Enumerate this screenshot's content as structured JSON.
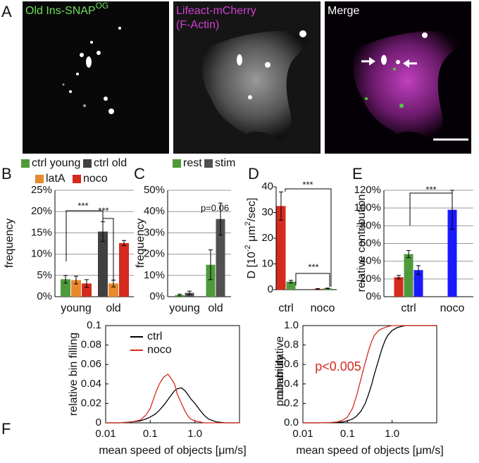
{
  "panel_labels": [
    "A",
    "B",
    "C",
    "D",
    "E",
    "F"
  ],
  "panel_a": {
    "labels": [
      {
        "text": "Old Ins-SNAP",
        "sup": "OG"
      },
      {
        "lines": [
          "Lifeact-mCherry",
          "(F-Actin)"
        ]
      },
      {
        "text": "Merge"
      }
    ]
  },
  "chart_data": [
    {
      "type": "bar",
      "categories": [
        "young",
        "old"
      ],
      "ylabel": "frequency",
      "ylim": [
        0,
        25
      ],
      "yticks": [
        {
          "value": 0,
          "label": "0%"
        },
        {
          "value": 5,
          "label": "5%"
        },
        {
          "value": 10,
          "label": "10%"
        },
        {
          "value": 15,
          "label": "15%"
        },
        {
          "value": 20,
          "label": "20%"
        },
        {
          "value": 25,
          "label": "25%"
        }
      ],
      "grid": true,
      "series": [
        {
          "name": "ctrl young",
          "color": "#4e9a3a",
          "values": [
            4.1,
            null
          ],
          "errors": [
            0.9,
            null
          ]
        },
        {
          "name": "ctrl old",
          "color": "#404040",
          "values": [
            null,
            15.3
          ],
          "errors": [
            null,
            2.3
          ]
        },
        {
          "name": "latA",
          "color": "#e8892e",
          "values": [
            3.9,
            3.1
          ],
          "errors": [
            0.9,
            0.8
          ]
        },
        {
          "name": "noco",
          "color": "#d52a1e",
          "values": [
            3.1,
            12.6
          ],
          "errors": [
            0.9,
            0.6
          ]
        }
      ],
      "annotations": [
        "***",
        "***"
      ]
    },
    {
      "type": "bar",
      "categories": [
        "young",
        "old"
      ],
      "ylabel": "frequency",
      "ylim": [
        0,
        50
      ],
      "yticks": [
        {
          "value": 0,
          "label": "0%"
        },
        {
          "value": 10,
          "label": "10%"
        },
        {
          "value": 20,
          "label": "20%"
        },
        {
          "value": 30,
          "label": "30%"
        },
        {
          "value": 40,
          "label": "40%"
        },
        {
          "value": 50,
          "label": "50%"
        }
      ],
      "grid": true,
      "series": [
        {
          "name": "rest",
          "color": "#4e9a3a",
          "values": [
            0.8,
            15
          ],
          "errors": [
            0.4,
            7
          ]
        },
        {
          "name": "stim",
          "color": "#505050",
          "values": [
            1.8,
            36.5
          ],
          "errors": [
            0.8,
            7.5
          ]
        }
      ],
      "annotations": [
        "p=0.06"
      ]
    },
    {
      "type": "bar",
      "categories": [
        "ctrl",
        "noco"
      ],
      "ylabel_parts": [
        {
          "text": "D [10"
        },
        {
          "sup": "-2"
        },
        {
          "text": " μm"
        },
        {
          "sup": "2"
        },
        {
          "text": "/sec]"
        }
      ],
      "ylim": [
        0,
        40
      ],
      "yticks": [
        0,
        10,
        20,
        30,
        40
      ],
      "grid": false,
      "series": [
        {
          "color": "#d52a1e",
          "values": [
            32.5,
            0.3
          ],
          "errors": [
            5.5,
            0.1
          ]
        },
        {
          "color": "#4e9a3a",
          "values": [
            3.1,
            0.5
          ],
          "errors": [
            0.5,
            0.1
          ]
        }
      ],
      "annotations": [
        "***",
        "***"
      ]
    },
    {
      "type": "bar",
      "categories": [
        "ctrl",
        "noco"
      ],
      "ylabel": "relative contribution",
      "ylim": [
        0,
        120
      ],
      "yticks": [
        {
          "value": 0,
          "label": "0%"
        },
        {
          "value": 20,
          "label": "20%"
        },
        {
          "value": 40,
          "label": "40%"
        },
        {
          "value": 60,
          "label": "60%"
        },
        {
          "value": 80,
          "label": "80%"
        },
        {
          "value": 100,
          "label": "100%"
        },
        {
          "value": 120,
          "label": "120%"
        }
      ],
      "grid": true,
      "series": [
        {
          "color": "#d52a1e",
          "values": [
            22,
            null
          ],
          "errors": [
            2,
            null
          ]
        },
        {
          "color": "#4e9a3a",
          "values": [
            48,
            null
          ],
          "errors": [
            4,
            null
          ]
        },
        {
          "color": "#1a1aff",
          "values": [
            30,
            98
          ],
          "errors": [
            5,
            22
          ]
        }
      ],
      "annotations": [
        "***"
      ]
    },
    {
      "type": "line",
      "log_x": true,
      "xlabel": "mean speed of objects [μm/s]",
      "ylabel": "relative bin filling",
      "xlim": [
        0.01,
        10
      ],
      "xticks": [
        0.01,
        0.1,
        {
          "value": 1,
          "label": "1.0"
        }
      ],
      "ylim": [
        0,
        0.1
      ],
      "yticks": [
        0,
        0.02,
        0.04,
        0.06,
        0.08,
        0.1
      ],
      "x": [
        0.01,
        0.02,
        0.04,
        0.06,
        0.08,
        0.1,
        0.13,
        0.16,
        0.2,
        0.25,
        0.3,
        0.35,
        0.4,
        0.5,
        0.6,
        0.7,
        0.8,
        1,
        1.3,
        1.6,
        2,
        3,
        5,
        10
      ],
      "series": [
        {
          "name": "ctrl",
          "color": "#000000",
          "values": [
            0,
            0,
            0.001,
            0.002,
            0.004,
            0.006,
            0.009,
            0.013,
            0.018,
            0.024,
            0.029,
            0.033,
            0.035,
            0.036,
            0.033,
            0.029,
            0.025,
            0.02,
            0.013,
            0.008,
            0.004,
            0.001,
            0,
            0
          ]
        },
        {
          "name": "noco",
          "color": "#d52a1e",
          "values": [
            0,
            0,
            0.001,
            0.003,
            0.008,
            0.015,
            0.03,
            0.04,
            0.047,
            0.05,
            0.045,
            0.04,
            0.03,
            0.02,
            0.012,
            0.007,
            0.004,
            0.002,
            0.001,
            0,
            0,
            0,
            0,
            0
          ]
        }
      ]
    },
    {
      "type": "line",
      "log_x": true,
      "xlabel": "mean speed of objects [μm/s]",
      "ylabel": [
        "cummulative",
        "probability"
      ],
      "xlim": [
        0.01,
        10
      ],
      "xticks": [
        0.01,
        0.1,
        {
          "value": 1,
          "label": "1.0"
        }
      ],
      "ylim": [
        0,
        1
      ],
      "yticks": [
        {
          "value": 0,
          "label": "0.0"
        },
        0.2,
        0.4,
        0.6,
        0.8,
        {
          "value": 1,
          "label": "1.0"
        }
      ],
      "x": [
        0.01,
        0.02,
        0.04,
        0.06,
        0.08,
        0.1,
        0.13,
        0.16,
        0.2,
        0.25,
        0.3,
        0.35,
        0.4,
        0.5,
        0.6,
        0.7,
        0.8,
        1,
        1.3,
        1.6,
        2,
        3,
        5,
        10
      ],
      "series": [
        {
          "color": "#000000",
          "values": [
            0,
            0,
            0.002,
            0.005,
            0.01,
            0.02,
            0.04,
            0.07,
            0.12,
            0.2,
            0.3,
            0.4,
            0.5,
            0.65,
            0.77,
            0.85,
            0.9,
            0.95,
            0.98,
            0.99,
            1,
            1,
            1,
            1
          ]
        },
        {
          "color": "#d52a1e",
          "values": [
            0,
            0,
            0.003,
            0.01,
            0.03,
            0.06,
            0.15,
            0.28,
            0.45,
            0.62,
            0.75,
            0.84,
            0.9,
            0.95,
            0.97,
            0.98,
            0.99,
            1,
            1,
            1,
            1,
            1,
            1,
            1
          ]
        }
      ],
      "annotations": [
        "p<0.005"
      ]
    }
  ]
}
